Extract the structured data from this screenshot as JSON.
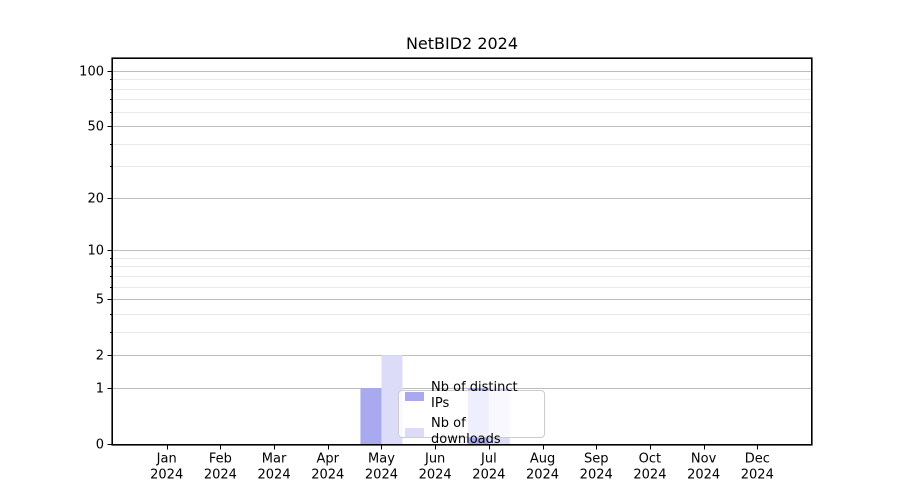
{
  "figure": {
    "title": "NetBID2 2024"
  },
  "axes": {
    "x_months": [
      "Jan",
      "Feb",
      "Mar",
      "Apr",
      "May",
      "Jun",
      "Jul",
      "Aug",
      "Sep",
      "Oct",
      "Nov",
      "Dec"
    ],
    "x_year": "2024",
    "y_ticks": [
      0,
      1,
      2,
      5,
      10,
      20,
      50,
      100
    ],
    "y_minor_ticks": [
      3,
      4,
      6,
      7,
      8,
      9,
      30,
      40,
      60,
      70,
      80,
      90
    ]
  },
  "legend": {
    "items": [
      {
        "label": "Nb of distinct IPs",
        "color": "#a9a9ef"
      },
      {
        "label": "Nb of downloads",
        "color": "#dcdcf8"
      }
    ]
  },
  "chart_data": {
    "type": "bar",
    "title": "NetBID2 2024",
    "categories": [
      "Jan 2024",
      "Feb 2024",
      "Mar 2024",
      "Apr 2024",
      "May 2024",
      "Jun 2024",
      "Jul 2024",
      "Aug 2024",
      "Sep 2024",
      "Oct 2024",
      "Nov 2024",
      "Dec 2024"
    ],
    "series": [
      {
        "name": "Nb of distinct IPs",
        "color": "#a9a9ef",
        "values": [
          0,
          0,
          0,
          0,
          1,
          0,
          1,
          0,
          0,
          0,
          0,
          0
        ]
      },
      {
        "name": "Nb of downloads",
        "color": "#dcdcf8",
        "values": [
          0,
          0,
          0,
          0,
          2,
          0,
          1,
          0,
          0,
          0,
          0,
          0
        ]
      }
    ],
    "xlabel": "",
    "ylabel": "",
    "yscale": "log1p",
    "ylim": [
      0,
      116
    ],
    "yticks": [
      0,
      1,
      2,
      5,
      10,
      20,
      50,
      100
    ],
    "yticks_minor": [
      3,
      4,
      6,
      7,
      8,
      9,
      30,
      40,
      60,
      70,
      80,
      90
    ],
    "grid": true,
    "legend_position": "lower center"
  },
  "colors": {
    "background": "#ffffff",
    "spine": "#000000",
    "text": "#000000",
    "grid_major": "#bdbdbd",
    "grid_minor": "#e9e9e9",
    "legend_border": "#cccccc",
    "legend_bg": "rgba(255,255,255,0.8)"
  }
}
